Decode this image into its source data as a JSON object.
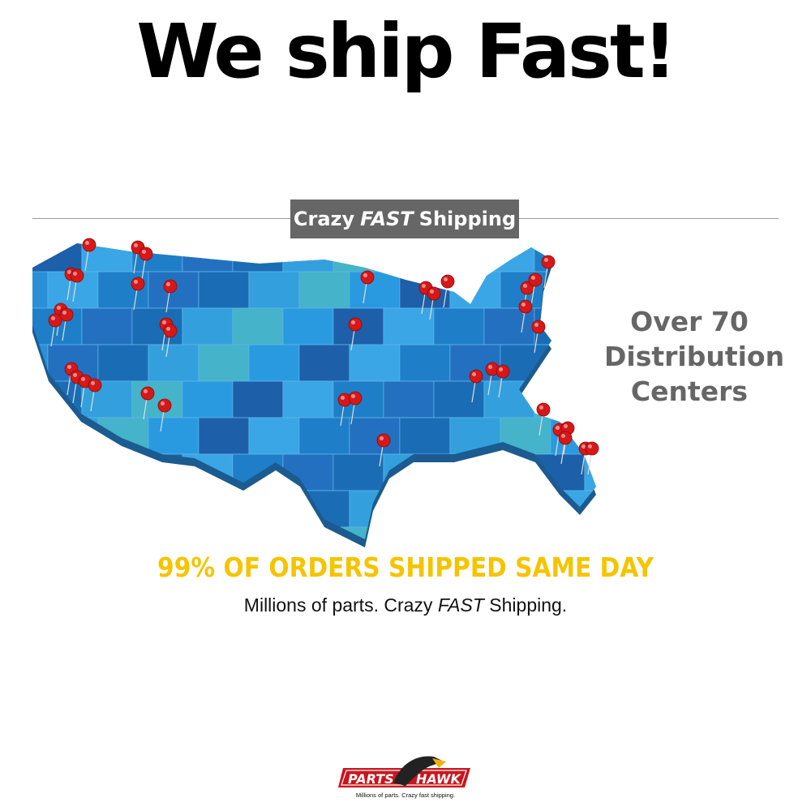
{
  "headline": "We ship Fast!",
  "banner": {
    "part1": "Crazy",
    "part2": "FAST",
    "part3": "Shipping"
  },
  "distribution": {
    "line1": "Over 70",
    "line2": "Distribution",
    "line3": "Centers"
  },
  "same_day": "99% OF ORDERS SHIPPED SAME DAY",
  "tagline": {
    "part1": "Millions of parts. Crazy",
    "part2": "FAST",
    "part3": "Shipping."
  },
  "logo": {
    "word1": "PARTS",
    "word2": "HAWK",
    "slogan": "Millions of parts. Crazy fast shipping."
  },
  "colors": {
    "map_blue": "#2a8fd6",
    "pin_red": "#d61818",
    "banner_gray": "#666666",
    "highlight_yellow": "#f5c400"
  }
}
